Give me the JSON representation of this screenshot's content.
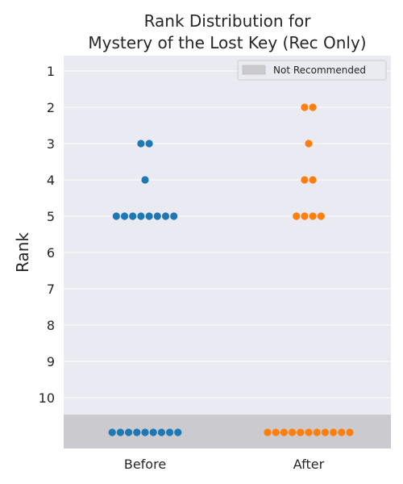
{
  "chart_data": {
    "type": "scatter",
    "style": "swarm",
    "title_line1": "Rank Distribution for",
    "title_line2": "Mystery of the Lost Key (Rec Only)",
    "xlabel": "",
    "ylabel": "Rank",
    "categories": [
      "Before",
      "After"
    ],
    "y_ticks": [
      "1",
      "2",
      "3",
      "4",
      "5",
      "6",
      "7",
      "8",
      "9",
      "10"
    ],
    "ylim": [
      1,
      10
    ],
    "legend": {
      "label": "Not Recommended",
      "placement": "top-right"
    },
    "grid": true,
    "series": [
      {
        "category": "Before",
        "color": "#1f77b4",
        "ranks": [
          3,
          3,
          4,
          5,
          5,
          5,
          5,
          5,
          5,
          5,
          5
        ],
        "not_recommended_count": 9
      },
      {
        "category": "After",
        "color": "#ff7f0e",
        "ranks": [
          2,
          2,
          3,
          4,
          4,
          5,
          5,
          5,
          5
        ],
        "not_recommended_count": 11
      }
    ],
    "colors": {
      "plot_background": "#eaeaf2",
      "not_recommended_band": "#cbcacf",
      "grid": "#ffffff"
    }
  }
}
